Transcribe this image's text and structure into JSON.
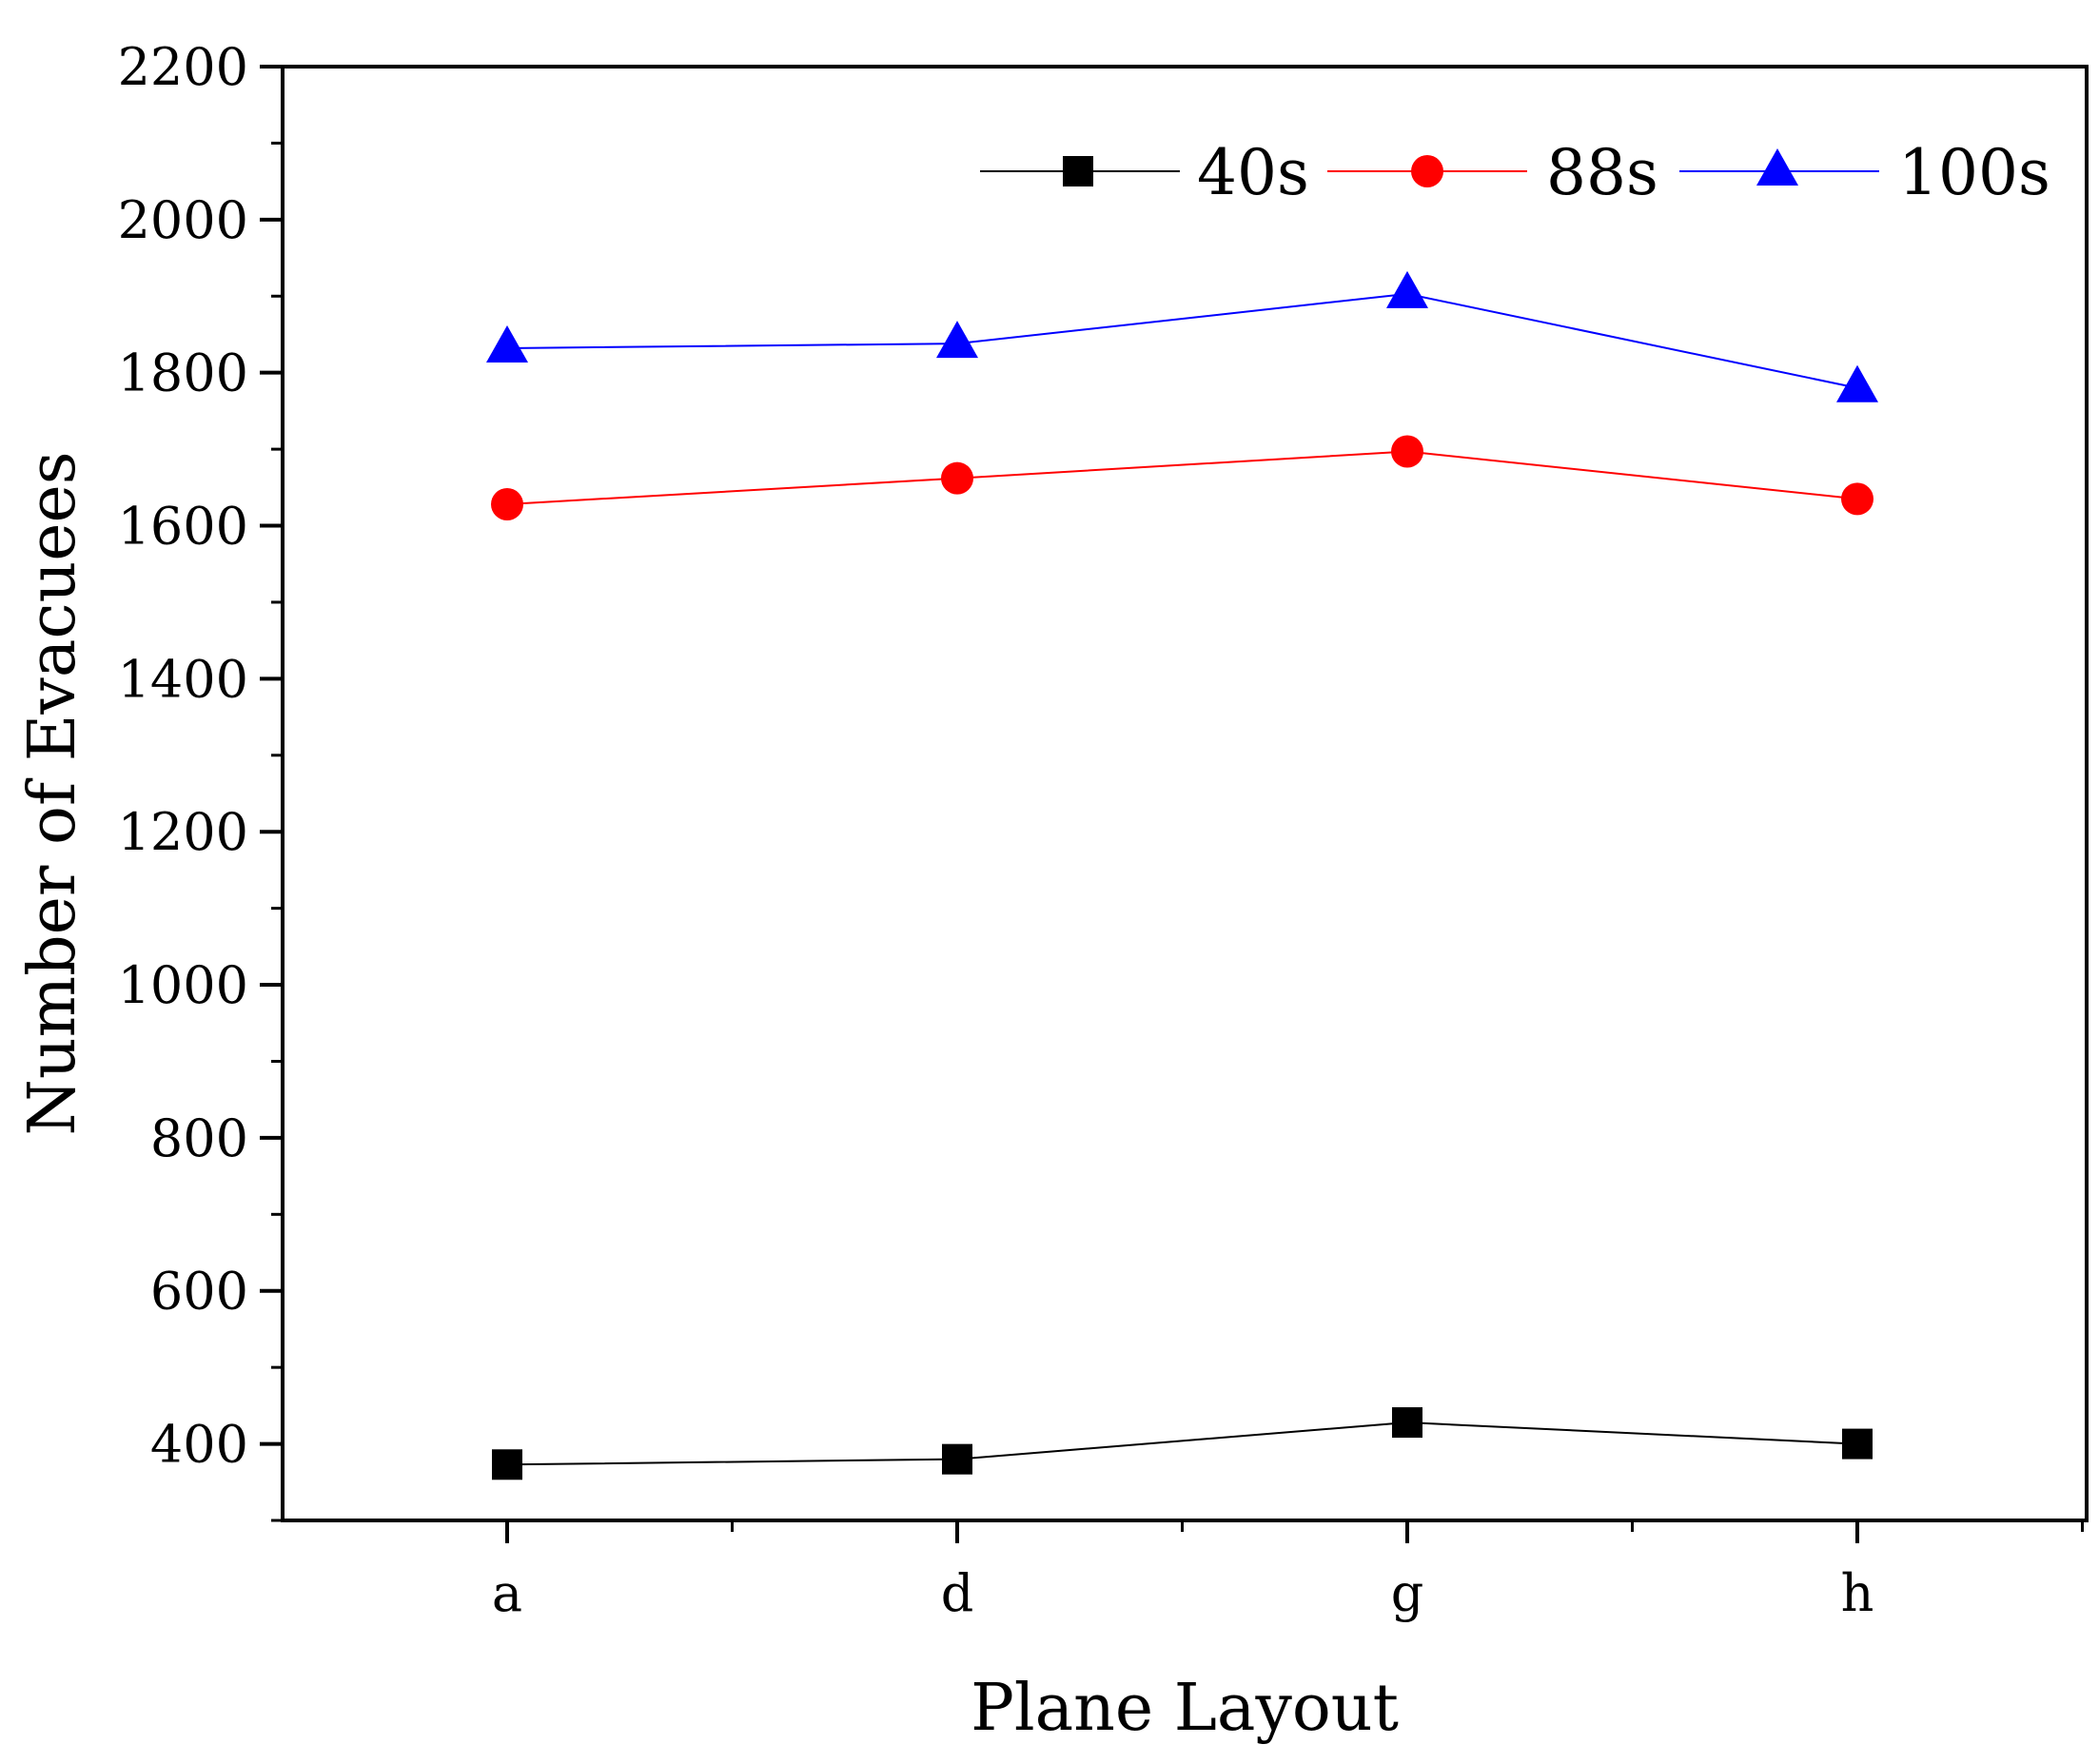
{
  "chart_data": {
    "type": "line",
    "title": "",
    "xlabel": "Plane Layout",
    "ylabel": "Number of Evacuees",
    "categories": [
      "a",
      "d",
      "g",
      "h"
    ],
    "ylim": [
      300,
      2200
    ],
    "yticks": [
      400,
      600,
      800,
      1000,
      1200,
      1400,
      1600,
      1800,
      2000,
      2200
    ],
    "grid": false,
    "legend_position": "top-right",
    "series": [
      {
        "name": "40s",
        "values": [
          373,
          380,
          428,
          400
        ],
        "color": "#000000",
        "marker": "square"
      },
      {
        "name": "88s",
        "values": [
          1628,
          1662,
          1697,
          1635
        ],
        "color": "#ff0000",
        "marker": "circle"
      },
      {
        "name": "100s",
        "values": [
          1832,
          1838,
          1903,
          1780
        ],
        "color": "#0000ff",
        "marker": "triangle"
      }
    ]
  }
}
